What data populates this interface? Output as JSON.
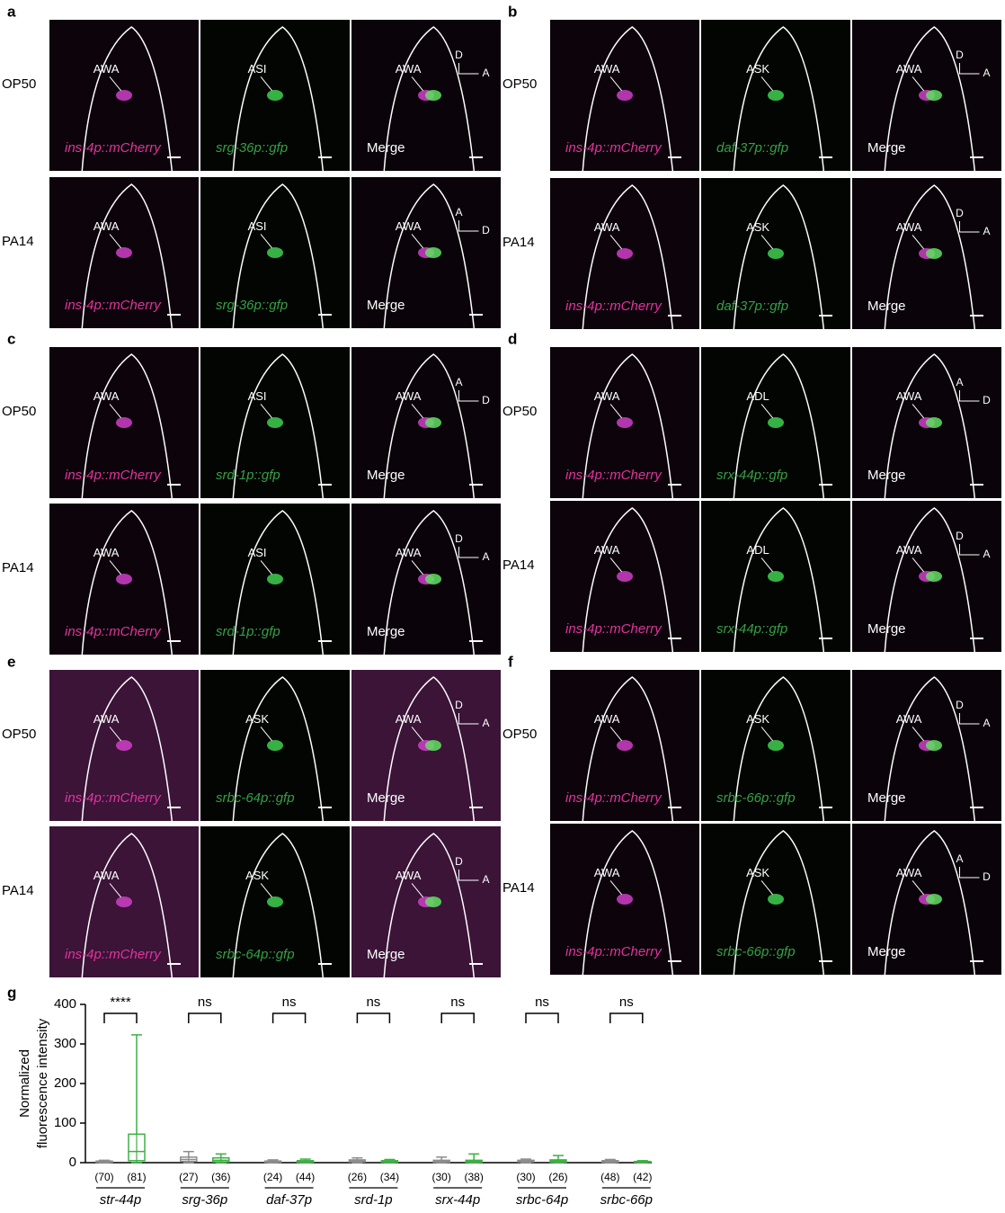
{
  "caption_colors": [
    "#e2339c",
    "#35a044",
    "#ffffff"
  ],
  "panels": [
    {
      "label": "a",
      "rows": [
        {
          "condition": "OP50",
          "images": [
            {
              "caption": "ins-4p::mCherry",
              "labels": [
                "AWA"
              ]
            },
            {
              "caption": "srg-36p::gfp",
              "labels": [
                "ASI"
              ]
            },
            {
              "caption": "Merge",
              "labels": [
                "AWA"
              ],
              "axes": [
                "D",
                "A"
              ]
            }
          ]
        },
        {
          "condition": "PA14",
          "images": [
            {
              "caption": "ins-4p::mCherry",
              "labels": [
                "AWA"
              ]
            },
            {
              "caption": "srg-36p::gfp",
              "labels": [
                "ASI"
              ]
            },
            {
              "caption": "Merge",
              "labels": [
                "AWA"
              ],
              "axes": [
                "A",
                "D"
              ]
            }
          ]
        }
      ]
    },
    {
      "label": "b",
      "rows": [
        {
          "condition": "OP50",
          "images": [
            {
              "caption": "ins-4p::mCherry",
              "labels": [
                "AWA"
              ]
            },
            {
              "caption": "daf-37p::gfp",
              "labels": [
                "ASK"
              ]
            },
            {
              "caption": "Merge",
              "labels": [
                "AWA"
              ],
              "axes": [
                "D",
                "A"
              ]
            }
          ]
        },
        {
          "condition": "PA14",
          "images": [
            {
              "caption": "ins-4p::mCherry",
              "labels": [
                "AWA"
              ]
            },
            {
              "caption": "daf-37p::gfp",
              "labels": [
                "ASK"
              ]
            },
            {
              "caption": "Merge",
              "labels": [
                "AWA"
              ],
              "axes": [
                "D",
                "A"
              ]
            }
          ]
        }
      ]
    },
    {
      "label": "c",
      "rows": [
        {
          "condition": "OP50",
          "images": [
            {
              "caption": "ins-4p::mCherry",
              "labels": [
                "AWA"
              ]
            },
            {
              "caption": "srd-1p::gfp",
              "labels": [
                "ASI"
              ]
            },
            {
              "caption": "Merge",
              "labels": [
                "AWA"
              ],
              "axes": [
                "A",
                "D"
              ]
            }
          ]
        },
        {
          "condition": "PA14",
          "images": [
            {
              "caption": "ins-4p::mCherry",
              "labels": [
                "AWA"
              ]
            },
            {
              "caption": "srd-1p::gfp",
              "labels": [
                "ASI"
              ]
            },
            {
              "caption": "Merge",
              "labels": [
                "AWA"
              ],
              "axes": [
                "D",
                "A"
              ]
            }
          ]
        }
      ]
    },
    {
      "label": "d",
      "rows": [
        {
          "condition": "OP50",
          "images": [
            {
              "caption": "ins-4p::mCherry",
              "labels": [
                "AWA"
              ]
            },
            {
              "caption": "srx-44p::gfp",
              "labels": [
                "ADL"
              ]
            },
            {
              "caption": "Merge",
              "labels": [
                "AWA"
              ],
              "axes": [
                "A",
                "D"
              ]
            }
          ]
        },
        {
          "condition": "PA14",
          "images": [
            {
              "caption": "ins-4p::mCherry",
              "labels": [
                "AWA"
              ]
            },
            {
              "caption": "srx-44p::gfp",
              "labels": [
                "ADL"
              ]
            },
            {
              "caption": "Merge",
              "labels": [
                "AWA"
              ],
              "axes": [
                "D",
                "A"
              ]
            }
          ]
        }
      ]
    },
    {
      "label": "e",
      "rows": [
        {
          "condition": "OP50",
          "images": [
            {
              "caption": "ins-4p::mCherry",
              "labels": [
                "AWA"
              ]
            },
            {
              "caption": "srbc-64p::gfp",
              "labels": [
                "ASK"
              ]
            },
            {
              "caption": "Merge",
              "labels": [
                "AWA"
              ],
              "axes": [
                "D",
                "A"
              ]
            }
          ]
        },
        {
          "condition": "PA14",
          "images": [
            {
              "caption": "ins-4p::mCherry",
              "labels": [
                "AWA"
              ]
            },
            {
              "caption": "srbc-64p::gfp",
              "labels": [
                "ASK"
              ]
            },
            {
              "caption": "Merge",
              "labels": [
                "AWA"
              ],
              "axes": [
                "D",
                "A"
              ]
            }
          ]
        }
      ]
    },
    {
      "label": "f",
      "rows": [
        {
          "condition": "OP50",
          "images": [
            {
              "caption": "ins-4p::mCherry",
              "labels": [
                "AWA"
              ]
            },
            {
              "caption": "srbc-66p::gfp",
              "labels": [
                "ASK"
              ]
            },
            {
              "caption": "Merge",
              "labels": [
                "AWA"
              ],
              "axes": [
                "D",
                "A"
              ]
            }
          ]
        },
        {
          "condition": "PA14",
          "images": [
            {
              "caption": "ins-4p::mCherry",
              "labels": [
                "AWA"
              ]
            },
            {
              "caption": "srbc-66p::gfp",
              "labels": [
                "ASK"
              ]
            },
            {
              "caption": "Merge",
              "labels": [
                "AWA"
              ],
              "axes": [
                "A",
                "D"
              ]
            }
          ]
        }
      ]
    }
  ],
  "chart_data": {
    "type": "box",
    "label": "g",
    "ylabel": [
      "Normalized",
      "fluorescence intensity"
    ],
    "ylim": [
      0,
      400
    ],
    "yticks": [
      0,
      100,
      200,
      300,
      400
    ],
    "categories": [
      "str-44p",
      "srg-36p",
      "daf-37p",
      "srd-1p",
      "srx-44p",
      "srbc-64p",
      "srbc-66p"
    ],
    "significance": [
      "****",
      "ns",
      "ns",
      "ns",
      "ns",
      "ns",
      "ns"
    ],
    "series": [
      {
        "color": "#8c8c8c",
        "n_labels": [
          "(70)",
          "(27)",
          "(24)",
          "(26)",
          "(30)",
          "(30)",
          "(48)"
        ],
        "min": [
          0,
          0,
          0,
          0,
          0,
          0,
          0
        ],
        "q1": [
          1,
          3,
          1,
          2,
          1,
          2,
          1
        ],
        "median": [
          2,
          8,
          2,
          4,
          3,
          4,
          3
        ],
        "q3": [
          4,
          14,
          4,
          7,
          6,
          6,
          5
        ],
        "max": [
          6,
          28,
          7,
          12,
          14,
          9,
          8
        ]
      },
      {
        "color": "#3cb043",
        "n_labels": [
          "(81)",
          "(36)",
          "(44)",
          "(34)",
          "(38)",
          "(26)",
          "(42)"
        ],
        "min": [
          0,
          0,
          0,
          0,
          0,
          0,
          0
        ],
        "q1": [
          5,
          2,
          1,
          1,
          1,
          1,
          1
        ],
        "median": [
          28,
          6,
          3,
          3,
          3,
          4,
          2
        ],
        "q3": [
          72,
          12,
          5,
          5,
          6,
          7,
          3
        ],
        "max": [
          323,
          22,
          9,
          8,
          22,
          18,
          5
        ]
      }
    ]
  }
}
